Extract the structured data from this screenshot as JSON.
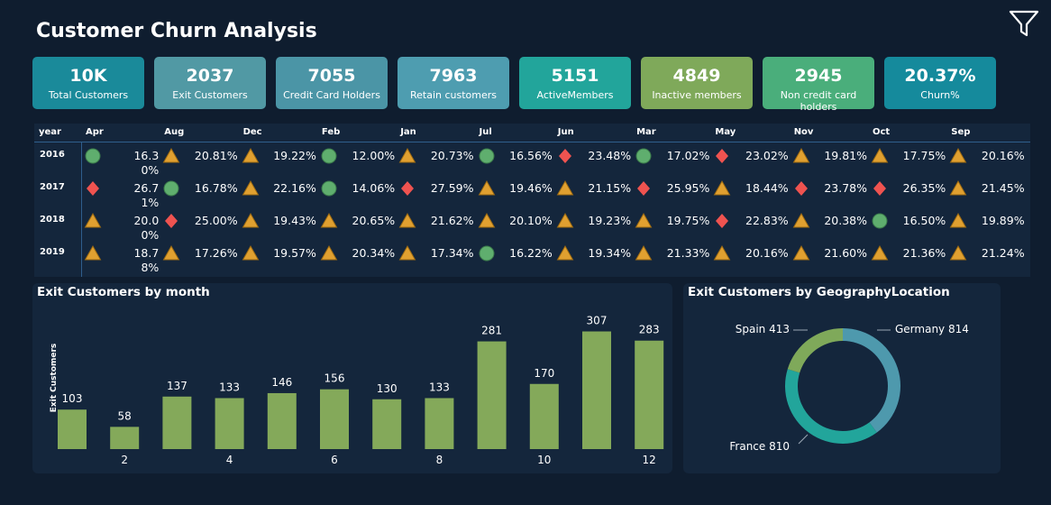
{
  "header": {
    "title": "Customer Churn Analysis"
  },
  "kpis": [
    {
      "value": "10K",
      "label": "Total Customers",
      "color": "#1a8a9a"
    },
    {
      "value": "2037",
      "label": "Exit Customers",
      "color": "#5199a4"
    },
    {
      "value": "7055",
      "label": "Credit Card Holders",
      "color": "#4b95a6"
    },
    {
      "value": "7963",
      "label": "Retain customers",
      "color": "#4e9db0"
    },
    {
      "value": "5151",
      "label": "ActiveMembers",
      "color": "#22a59b"
    },
    {
      "value": "4849",
      "label": "Inactive members",
      "color": "#7fa95a"
    },
    {
      "value": "2945",
      "label": "Non credit card holders",
      "color": "#4aae7b"
    },
    {
      "value": "20.37%",
      "label": "Churn%",
      "color": "#158a9c"
    }
  ],
  "matrix": {
    "year_header": "year",
    "months": [
      "Apr",
      "Aug",
      "Dec",
      "Feb",
      "Jan",
      "Jul",
      "Jun",
      "Mar",
      "May",
      "Nov",
      "Oct",
      "Sep"
    ],
    "rows": [
      {
        "year": "2016",
        "cells": [
          {
            "icon": "circle",
            "value": "16.30%"
          },
          {
            "icon": "triangle",
            "value": "20.81%"
          },
          {
            "icon": "triangle",
            "value": "19.22%"
          },
          {
            "icon": "circle",
            "value": "12.00%"
          },
          {
            "icon": "triangle",
            "value": "20.73%"
          },
          {
            "icon": "circle",
            "value": "16.56%"
          },
          {
            "icon": "diamond",
            "value": "23.48%"
          },
          {
            "icon": "circle",
            "value": "17.02%"
          },
          {
            "icon": "diamond",
            "value": "23.02%"
          },
          {
            "icon": "triangle",
            "value": "19.81%"
          },
          {
            "icon": "triangle",
            "value": "17.75%"
          },
          {
            "icon": "triangle",
            "value": "20.16%"
          }
        ]
      },
      {
        "year": "2017",
        "cells": [
          {
            "icon": "diamond",
            "value": "26.71%"
          },
          {
            "icon": "circle",
            "value": "16.78%"
          },
          {
            "icon": "triangle",
            "value": "22.16%"
          },
          {
            "icon": "circle",
            "value": "14.06%"
          },
          {
            "icon": "diamond",
            "value": "27.59%"
          },
          {
            "icon": "triangle",
            "value": "19.46%"
          },
          {
            "icon": "triangle",
            "value": "21.15%"
          },
          {
            "icon": "diamond",
            "value": "25.95%"
          },
          {
            "icon": "triangle",
            "value": "18.44%"
          },
          {
            "icon": "diamond",
            "value": "23.78%"
          },
          {
            "icon": "diamond",
            "value": "26.35%"
          },
          {
            "icon": "triangle",
            "value": "21.45%"
          }
        ]
      },
      {
        "year": "2018",
        "cells": [
          {
            "icon": "triangle",
            "value": "20.00%"
          },
          {
            "icon": "diamond",
            "value": "25.00%"
          },
          {
            "icon": "triangle",
            "value": "19.43%"
          },
          {
            "icon": "triangle",
            "value": "20.65%"
          },
          {
            "icon": "triangle",
            "value": "21.62%"
          },
          {
            "icon": "triangle",
            "value": "20.10%"
          },
          {
            "icon": "triangle",
            "value": "19.23%"
          },
          {
            "icon": "triangle",
            "value": "19.75%"
          },
          {
            "icon": "diamond",
            "value": "22.83%"
          },
          {
            "icon": "triangle",
            "value": "20.38%"
          },
          {
            "icon": "circle",
            "value": "16.50%"
          },
          {
            "icon": "triangle",
            "value": "19.89%"
          }
        ]
      },
      {
        "year": "2019",
        "cells": [
          {
            "icon": "triangle",
            "value": "18.78%"
          },
          {
            "icon": "triangle",
            "value": "17.26%"
          },
          {
            "icon": "triangle",
            "value": "19.57%"
          },
          {
            "icon": "triangle",
            "value": "20.34%"
          },
          {
            "icon": "triangle",
            "value": "17.34%"
          },
          {
            "icon": "circle",
            "value": "16.22%"
          },
          {
            "icon": "triangle",
            "value": "19.34%"
          },
          {
            "icon": "triangle",
            "value": "21.33%"
          },
          {
            "icon": "triangle",
            "value": "20.16%"
          },
          {
            "icon": "triangle",
            "value": "21.60%"
          },
          {
            "icon": "triangle",
            "value": "21.36%"
          },
          {
            "icon": "triangle",
            "value": "21.24%"
          }
        ]
      }
    ],
    "icon_colors": {
      "circle": "#5fae6e",
      "triangle": "#e0a030",
      "diamond": "#ef5350"
    }
  },
  "chart_data": [
    {
      "type": "bar",
      "title": "Exit Customers by month",
      "ylabel": "Exit Customers",
      "xlabel": "",
      "categories": [
        1,
        2,
        3,
        4,
        5,
        6,
        7,
        8,
        9,
        10,
        11,
        12
      ],
      "tick_labels": [
        "",
        "2",
        "",
        "4",
        "",
        "6",
        "",
        "8",
        "",
        "10",
        "",
        "12"
      ],
      "values": [
        103,
        58,
        137,
        133,
        146,
        156,
        130,
        133,
        281,
        170,
        307,
        283
      ],
      "color": "#84a95a",
      "ylim": [
        0,
        320
      ]
    },
    {
      "type": "pie",
      "title": "Exit Customers by GeographyLocation",
      "donut": true,
      "slices": [
        {
          "label": "Germany",
          "value": 814,
          "text": "Germany 814",
          "color": "#4e99ad"
        },
        {
          "label": "France",
          "value": 810,
          "text": "France 810",
          "color": "#22a59b"
        },
        {
          "label": "Spain",
          "value": 413,
          "text": "Spain 413",
          "color": "#7fa95a"
        }
      ]
    }
  ]
}
